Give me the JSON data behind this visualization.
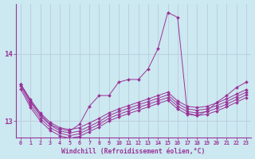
{
  "bg_color": "#cce8f0",
  "line_color": "#993399",
  "grid_color": "#bbccdd",
  "xlim": [
    -0.5,
    23.5
  ],
  "ylim": [
    12.75,
    14.75
  ],
  "yticks": [
    13,
    14
  ],
  "xticks": [
    0,
    1,
    2,
    3,
    4,
    5,
    6,
    7,
    8,
    9,
    10,
    11,
    12,
    13,
    14,
    15,
    16,
    17,
    18,
    19,
    20,
    21,
    22,
    23
  ],
  "xlabel": "Windchill (Refroidissement éolien,°C)",
  "series": [
    [
      13.55,
      13.32,
      13.12,
      12.98,
      12.9,
      12.87,
      12.9,
      12.97,
      13.04,
      13.12,
      13.18,
      13.23,
      13.28,
      13.33,
      13.38,
      13.43,
      13.3,
      13.22,
      13.2,
      13.22,
      13.27,
      13.33,
      13.4,
      13.47
    ],
    [
      13.55,
      13.28,
      13.08,
      12.94,
      12.85,
      12.82,
      12.85,
      12.92,
      12.99,
      13.08,
      13.14,
      13.19,
      13.24,
      13.29,
      13.34,
      13.39,
      13.26,
      13.18,
      13.16,
      13.18,
      13.23,
      13.29,
      13.36,
      13.43
    ],
    [
      13.52,
      13.24,
      13.04,
      12.9,
      12.82,
      12.78,
      12.81,
      12.88,
      12.95,
      13.04,
      13.1,
      13.15,
      13.2,
      13.25,
      13.3,
      13.35,
      13.22,
      13.14,
      13.12,
      13.14,
      13.19,
      13.25,
      13.32,
      13.39
    ],
    [
      13.48,
      13.2,
      13.0,
      12.86,
      12.78,
      12.74,
      12.77,
      12.84,
      12.91,
      13.0,
      13.06,
      13.11,
      13.16,
      13.21,
      13.26,
      13.31,
      13.18,
      13.1,
      13.08,
      13.1,
      13.15,
      13.21,
      13.28,
      13.35
    ]
  ],
  "main_series_y": [
    13.55,
    13.3,
    13.1,
    12.95,
    12.88,
    12.85,
    12.95,
    13.22,
    13.38,
    13.38,
    13.58,
    13.62,
    13.62,
    13.78,
    14.08,
    14.62,
    14.55,
    13.12,
    13.08,
    13.15,
    13.28,
    13.38,
    13.5,
    13.58
  ]
}
